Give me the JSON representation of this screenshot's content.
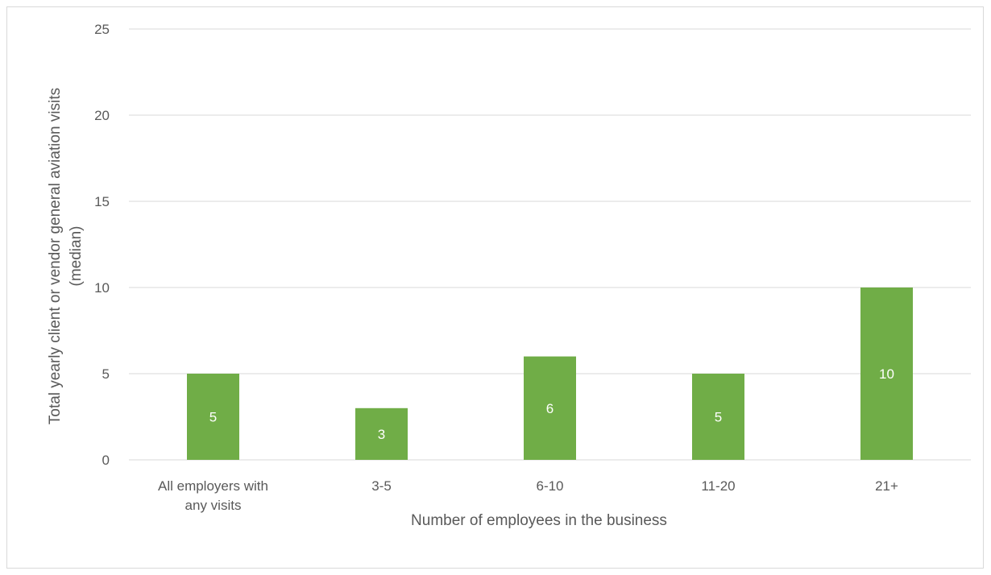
{
  "chart_data": {
    "type": "bar",
    "categories": [
      [
        "All employers with",
        "any visits"
      ],
      [
        "3-5"
      ],
      [
        "6-10"
      ],
      [
        "11-20"
      ],
      [
        "21+"
      ]
    ],
    "values": [
      5,
      3,
      6,
      5,
      10
    ],
    "data_labels": [
      "5",
      "3",
      "6",
      "5",
      "10"
    ],
    "title": "",
    "xlabel": "Number of employees in the business",
    "ylabel": [
      "Total yearly client or vendor general aviation visits",
      "(median)"
    ],
    "ylim": [
      0,
      25
    ],
    "yticks": [
      0,
      5,
      10,
      15,
      20,
      25
    ],
    "grid": true,
    "legend": "none",
    "colors": {
      "bar": "#70ad47",
      "grid": "#d9d9d9",
      "text": "#595959"
    }
  }
}
